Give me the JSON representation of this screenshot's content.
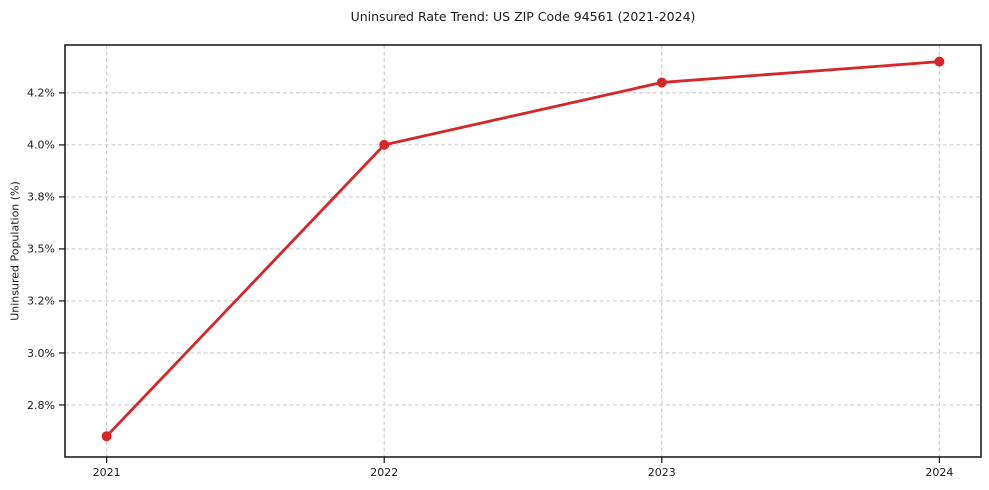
{
  "chart_data": {
    "type": "line",
    "title": "Uninsured Rate Trend: US ZIP Code 94561 (2021-2024)",
    "xlabel": "",
    "ylabel": "Uninsured Population (%)",
    "x": [
      2021,
      2022,
      2023,
      2024
    ],
    "series": [
      {
        "name": "Uninsured rate",
        "values": [
          2.6,
          4.0,
          4.3,
          4.4
        ],
        "unit": "%",
        "color": "#d62728",
        "marker": "circle",
        "marker_radius": 5
      }
    ],
    "xtick_labels": [
      "2021",
      "2022",
      "2023",
      "2024"
    ],
    "yticks": [
      {
        "value": 2.75,
        "label": "2.8%"
      },
      {
        "value": 3.0,
        "label": "3.0%"
      },
      {
        "value": 3.25,
        "label": "3.2%"
      },
      {
        "value": 3.5,
        "label": "3.5%"
      },
      {
        "value": 3.75,
        "label": "3.8%"
      },
      {
        "value": 4.0,
        "label": "4.0%"
      },
      {
        "value": 4.25,
        "label": "4.2%"
      }
    ],
    "xlim": [
      2020.85,
      2024.15
    ],
    "ylim": [
      2.5,
      4.48
    ],
    "grid": {
      "show": true,
      "style": "dashed",
      "color": "#cccccc"
    },
    "legend": "none",
    "background_color": "#ffffff",
    "spine_color": "#111111"
  }
}
